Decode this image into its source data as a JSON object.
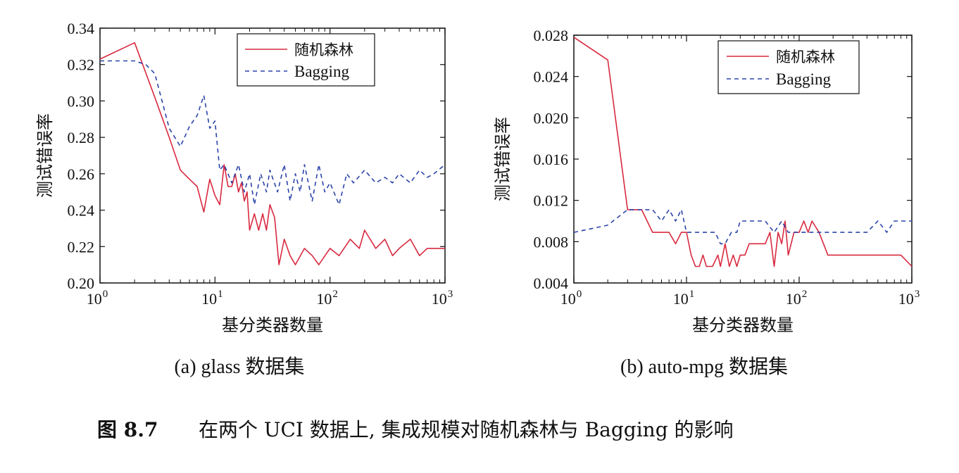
{
  "caption": {
    "label": "图 8.7",
    "text": "在两个 UCI 数据上, 集成规模对随机森林与 Bagging 的影响"
  },
  "colors": {
    "rf": "#d8293f",
    "bagging": "#2c44a8"
  },
  "chart_data": [
    {
      "type": "line",
      "subtitle": "(a) glass 数据集",
      "xlabel": "基分类器数量",
      "ylabel": "测试错误率",
      "xscale": "log",
      "xlim": [
        1,
        1000
      ],
      "ylim": [
        0.2,
        0.34
      ],
      "yticks": [
        "0.20",
        "0.22",
        "0.24",
        "0.26",
        "0.28",
        "0.30",
        "0.32",
        "0.34"
      ],
      "xticks": [
        {
          "base": "10",
          "exp": "0"
        },
        {
          "base": "10",
          "exp": "1"
        },
        {
          "base": "10",
          "exp": "2"
        },
        {
          "base": "10",
          "exp": "3"
        }
      ],
      "legend": {
        "position": "top-right",
        "entries": [
          "随机森林",
          "Bagging"
        ]
      },
      "series": [
        {
          "name": "随机森林",
          "style": "solid",
          "x": [
            1,
            2,
            3,
            4,
            5,
            6,
            7,
            8,
            9,
            10,
            11,
            12,
            13,
            14,
            15,
            16,
            17,
            18,
            19,
            20,
            22,
            24,
            26,
            28,
            30,
            33,
            36,
            40,
            45,
            50,
            60,
            70,
            80,
            100,
            120,
            150,
            180,
            200,
            250,
            300,
            350,
            400,
            500,
            600,
            700,
            800,
            1000
          ],
          "y": [
            0.323,
            0.332,
            0.302,
            0.28,
            0.262,
            0.257,
            0.253,
            0.239,
            0.257,
            0.248,
            0.243,
            0.265,
            0.253,
            0.253,
            0.26,
            0.25,
            0.255,
            0.245,
            0.25,
            0.229,
            0.238,
            0.229,
            0.238,
            0.229,
            0.243,
            0.236,
            0.21,
            0.224,
            0.215,
            0.21,
            0.219,
            0.215,
            0.21,
            0.219,
            0.215,
            0.224,
            0.219,
            0.229,
            0.219,
            0.224,
            0.215,
            0.219,
            0.224,
            0.215,
            0.219,
            0.219,
            0.219
          ]
        },
        {
          "name": "Bagging",
          "style": "dashed",
          "x": [
            1,
            2,
            2.5,
            3,
            4,
            5,
            6,
            7,
            8,
            9,
            10,
            11,
            12,
            14,
            16,
            18,
            20,
            22,
            25,
            28,
            30,
            35,
            40,
            45,
            50,
            55,
            60,
            70,
            80,
            90,
            100,
            120,
            140,
            160,
            200,
            250,
            300,
            350,
            400,
            500,
            600,
            700,
            800,
            1000
          ],
          "y": [
            0.322,
            0.322,
            0.32,
            0.315,
            0.285,
            0.275,
            0.286,
            0.292,
            0.303,
            0.285,
            0.289,
            0.262,
            0.265,
            0.255,
            0.265,
            0.25,
            0.26,
            0.243,
            0.26,
            0.25,
            0.262,
            0.25,
            0.265,
            0.245,
            0.26,
            0.25,
            0.265,
            0.245,
            0.265,
            0.25,
            0.255,
            0.243,
            0.26,
            0.255,
            0.262,
            0.255,
            0.258,
            0.255,
            0.26,
            0.255,
            0.262,
            0.258,
            0.26,
            0.265
          ]
        }
      ]
    },
    {
      "type": "line",
      "subtitle": "(b) auto-mpg 数据集",
      "xlabel": "基分类器数量",
      "ylabel": "测试错误率",
      "xscale": "log",
      "xlim": [
        1,
        1000
      ],
      "ylim": [
        0.004,
        0.028
      ],
      "yticks": [
        "0.004",
        "0.008",
        "0.012",
        "0.016",
        "0.020",
        "0.024",
        "0.028"
      ],
      "xticks": [
        {
          "base": "10",
          "exp": "0"
        },
        {
          "base": "10",
          "exp": "1"
        },
        {
          "base": "10",
          "exp": "2"
        },
        {
          "base": "10",
          "exp": "3"
        }
      ],
      "legend": {
        "position": "top-right",
        "entries": [
          "随机森林",
          "Bagging"
        ]
      },
      "series": [
        {
          "name": "随机森林",
          "style": "solid",
          "x": [
            1,
            2,
            3,
            4,
            5,
            6,
            7,
            8,
            9,
            10,
            11,
            12,
            13,
            14,
            15,
            17,
            19,
            20,
            22,
            24,
            26,
            28,
            30,
            33,
            36,
            40,
            45,
            50,
            55,
            60,
            65,
            70,
            75,
            80,
            90,
            100,
            110,
            120,
            130,
            150,
            180,
            200,
            250,
            300,
            400,
            500,
            600,
            700,
            800,
            1000
          ],
          "y": [
            0.0278,
            0.0256,
            0.0111,
            0.0111,
            0.0089,
            0.0089,
            0.0089,
            0.0078,
            0.0089,
            0.0089,
            0.0067,
            0.0056,
            0.0056,
            0.0067,
            0.0056,
            0.0056,
            0.0067,
            0.0056,
            0.0078,
            0.0056,
            0.0067,
            0.0056,
            0.0067,
            0.0067,
            0.0078,
            0.0078,
            0.0078,
            0.0078,
            0.0089,
            0.0056,
            0.0089,
            0.0078,
            0.01,
            0.0067,
            0.0089,
            0.0089,
            0.01,
            0.0089,
            0.01,
            0.0089,
            0.0067,
            0.0067,
            0.0067,
            0.0067,
            0.0067,
            0.0067,
            0.0067,
            0.0067,
            0.0067,
            0.0056
          ]
        },
        {
          "name": "Bagging",
          "style": "dashed",
          "x": [
            1,
            2,
            3,
            4,
            5,
            6,
            7,
            8,
            9,
            10,
            12,
            14,
            16,
            18,
            20,
            22,
            25,
            28,
            30,
            35,
            40,
            50,
            60,
            70,
            80,
            100,
            120,
            150,
            200,
            250,
            300,
            350,
            400,
            500,
            600,
            700,
            800,
            1000
          ],
          "y": [
            0.0089,
            0.0096,
            0.0111,
            0.0111,
            0.0111,
            0.01,
            0.0111,
            0.01,
            0.0111,
            0.0089,
            0.0089,
            0.0089,
            0.0089,
            0.0089,
            0.0078,
            0.0078,
            0.0089,
            0.0089,
            0.01,
            0.01,
            0.01,
            0.01,
            0.0089,
            0.01,
            0.0089,
            0.0089,
            0.0089,
            0.0089,
            0.0089,
            0.0089,
            0.0089,
            0.0089,
            0.0089,
            0.01,
            0.0089,
            0.01,
            0.01,
            0.01
          ]
        }
      ]
    }
  ]
}
